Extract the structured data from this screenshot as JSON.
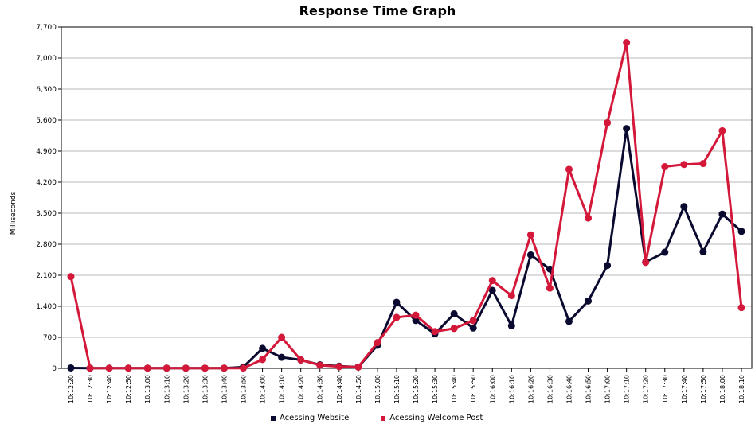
{
  "chart_data": {
    "type": "line",
    "title": "Response Time Graph",
    "xlabel": "",
    "ylabel": "Milliseconds",
    "ylim": [
      0,
      7700
    ],
    "yticks": [
      0,
      700,
      1400,
      2100,
      2800,
      3500,
      4200,
      4900,
      5600,
      6300,
      7000,
      7700
    ],
    "ytick_labels": [
      "0",
      "700",
      "1,400",
      "2,100",
      "2,800",
      "3,500",
      "4,200",
      "4,900",
      "5,600",
      "6,300",
      "7,000",
      "7,700"
    ],
    "grid": true,
    "legend_position": "bottom-center",
    "categories": [
      "10:12:20",
      "10:12:30",
      "10:12:40",
      "10:12:50",
      "10:13:00",
      "10:13:10",
      "10:13:20",
      "10:13:30",
      "10:13:40",
      "10:13:50",
      "10:14:00",
      "10:14:10",
      "10:14:20",
      "10:14:30",
      "10:14:40",
      "10:14:50",
      "10:15:00",
      "10:15:10",
      "10:15:20",
      "10:15:30",
      "10:15:40",
      "10:15:50",
      "10:16:00",
      "10:16:10",
      "10:16:20",
      "10:16:30",
      "10:16:40",
      "10:16:50",
      "10:17:00",
      "10:17:10",
      "10:17:20",
      "10:17:30",
      "10:17:40",
      "10:17:50",
      "10:18:00",
      "10:18:10"
    ],
    "series": [
      {
        "name": "Acessing Website",
        "color": "#0a0a30",
        "values": [
          10,
          5,
          5,
          5,
          5,
          5,
          5,
          5,
          5,
          30,
          450,
          250,
          190,
          80,
          50,
          30,
          520,
          1490,
          1080,
          780,
          1230,
          910,
          1760,
          960,
          2560,
          2240,
          1060,
          1520,
          2320,
          5410,
          2400,
          2620,
          3650,
          2630,
          3480,
          3090
        ]
      },
      {
        "name": "Acessing Welcome Post",
        "color": "#d4183a",
        "values": [
          2070,
          5,
          5,
          5,
          5,
          5,
          5,
          5,
          5,
          5,
          200,
          700,
          190,
          70,
          40,
          30,
          580,
          1150,
          1200,
          830,
          900,
          1080,
          1980,
          1640,
          3010,
          1810,
          4490,
          3390,
          5540,
          7350,
          2390,
          4550,
          4600,
          4620,
          5360,
          1370
        ]
      }
    ]
  }
}
